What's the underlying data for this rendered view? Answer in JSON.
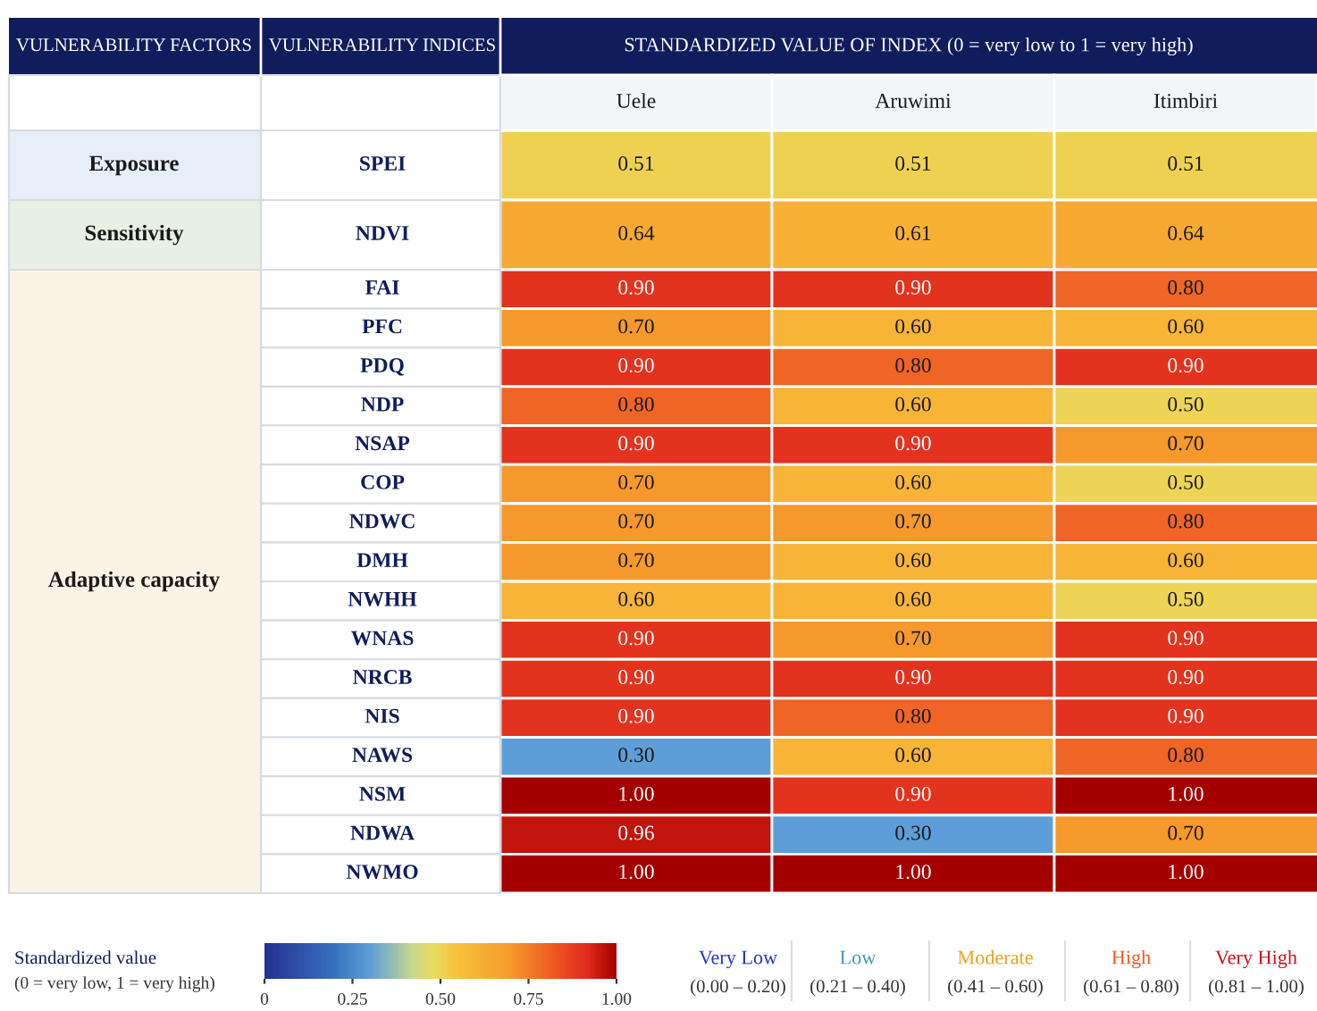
{
  "chart_data": {
    "type": "heatmap",
    "title": "STANDARDIZED VALUE OF INDEX (0 = very low to 1 = very high)",
    "categories": [
      "Uele",
      "Aruwimi",
      "Itimbiri"
    ],
    "y_categories": [
      "SPEI",
      "NDVI",
      "FAI",
      "PFC",
      "PDQ",
      "NDP",
      "NSAP",
      "COP",
      "NDWC",
      "DMH",
      "NWHH",
      "WNAS",
      "NRCB",
      "NIS",
      "NAWS",
      "NSM",
      "NDWA",
      "NWMO"
    ],
    "cells": [
      [
        0.51,
        0.51,
        0.51
      ],
      [
        0.64,
        0.61,
        0.64
      ],
      [
        0.9,
        0.9,
        0.8
      ],
      [
        0.7,
        0.6,
        0.6
      ],
      [
        0.9,
        0.8,
        0.9
      ],
      [
        0.8,
        0.6,
        0.5
      ],
      [
        0.9,
        0.9,
        0.7
      ],
      [
        0.7,
        0.6,
        0.5
      ],
      [
        0.7,
        0.7,
        0.8
      ],
      [
        0.7,
        0.6,
        0.6
      ],
      [
        0.6,
        0.6,
        0.5
      ],
      [
        0.9,
        0.7,
        0.9
      ],
      [
        0.9,
        0.9,
        0.9
      ],
      [
        0.9,
        0.8,
        0.9
      ],
      [
        0.3,
        0.6,
        0.8
      ],
      [
        1.0,
        0.9,
        1.0
      ],
      [
        0.96,
        0.3,
        0.7
      ],
      [
        1.0,
        1.0,
        1.0
      ]
    ],
    "cell_labels": [
      [
        "0.51",
        "0.51",
        "0.51"
      ],
      [
        "0.64",
        "0.61",
        "0.64"
      ],
      [
        "0.90",
        "0.90",
        "0.80"
      ],
      [
        "0.70",
        "0.60",
        "0.60"
      ],
      [
        "0.90",
        "0.80",
        "0.90"
      ],
      [
        "0.80",
        "0.60",
        "0.50"
      ],
      [
        "0.90",
        "0.90",
        "0.70"
      ],
      [
        "0.70",
        "0.60",
        "0.50"
      ],
      [
        "0.70",
        "0.70",
        "0.80"
      ],
      [
        "0.70",
        "0.60",
        "0.60"
      ],
      [
        "0.60",
        "0.60",
        "0.50"
      ],
      [
        "0.90",
        "0.70",
        "0.90"
      ],
      [
        "0.90",
        "0.90",
        "0.90"
      ],
      [
        "0.90",
        "0.80",
        "0.90"
      ],
      [
        "0.30",
        "0.60",
        "0.80"
      ],
      [
        "1.00",
        "0.90",
        "1.00"
      ],
      [
        "0.96",
        "0.30",
        "0.70"
      ],
      [
        "1.00",
        "1.00",
        "1.00"
      ]
    ],
    "clim": [
      0,
      1
    ],
    "cticks": [
      0,
      {
        "value": 0.25,
        "label": "0.25"
      },
      {
        "value": 0.5,
        "label": "0.50"
      },
      {
        "value": 0.75,
        "label": "0.75"
      },
      {
        "value": 1,
        "label": "1.00"
      }
    ],
    "clabel": "Standardized value\n(0 = very low, 1 = very high)",
    "annotations": [
      "VULNERABILITY FACTORS",
      "VULNERABILITY INDICES",
      "Exposure",
      "Sensitivity",
      "Adaptive capacity",
      "Very Low\n(0.00 – 0.20)",
      "Low\n(0.21 – 0.40)",
      "Moderate\n(0.41 – 0.60)",
      "High\n(0.61 – 0.80)",
      "Very High\n(0.81 – 1.00)"
    ]
  }
}
